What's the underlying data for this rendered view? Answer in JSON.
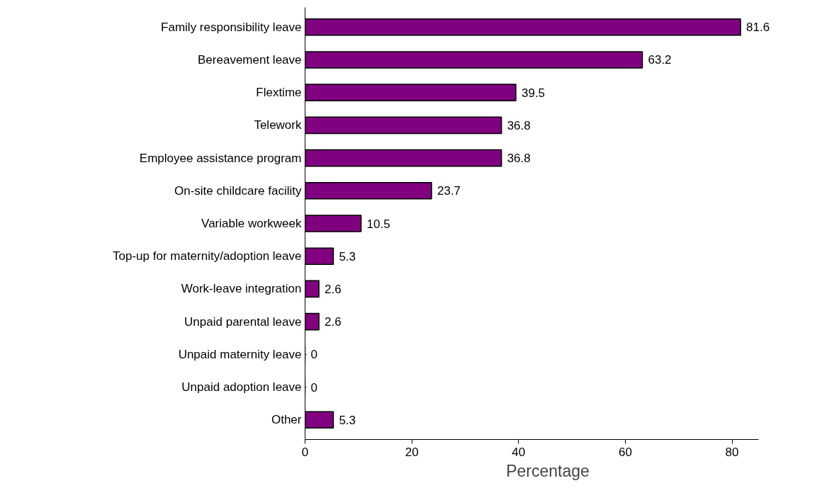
{
  "chart_data": {
    "type": "bar",
    "orientation": "horizontal",
    "xlabel": "Percentage",
    "categories": [
      "Family responsibility leave",
      "Bereavement leave",
      "Flextime",
      "Telework",
      "Employee assistance program",
      "On-site childcare facility",
      "Variable workweek",
      "Top-up for maternity/adoption leave",
      "Work-leave integration",
      "Unpaid parental leave",
      "Unpaid maternity leave",
      "Unpaid adoption leave",
      "Other"
    ],
    "values": [
      81.6,
      63.2,
      39.5,
      36.8,
      36.8,
      23.7,
      10.5,
      5.3,
      2.6,
      2.6,
      0,
      0,
      5.3
    ],
    "color": "#800080",
    "xlim": [
      0,
      85
    ],
    "xticks": [
      0,
      20,
      40,
      60,
      80
    ],
    "grid": false,
    "data_labels": true
  }
}
